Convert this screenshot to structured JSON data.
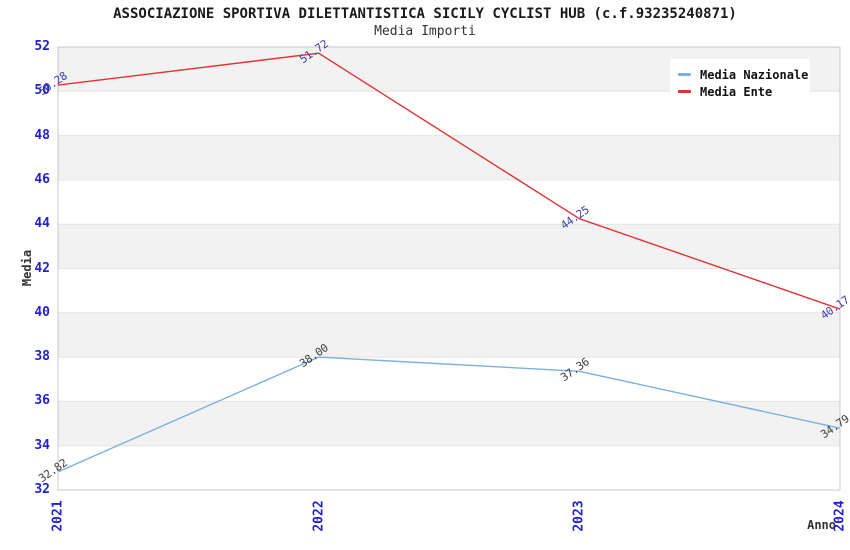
{
  "chart_data": {
    "type": "line",
    "title": "ASSOCIAZIONE SPORTIVA DILETTANTISTICA SICILY CYCLIST HUB (c.f.93235240871)",
    "subtitle": "Media Importi",
    "xlabel": "Anno",
    "ylabel": "Media",
    "x": [
      "2021",
      "2022",
      "2023",
      "2024"
    ],
    "ylim": [
      32,
      52
    ],
    "ytick_step": 2,
    "yticks": [
      32,
      34,
      36,
      38,
      40,
      42,
      44,
      46,
      48,
      50,
      52
    ],
    "grid": "horizontal-alternating-bands",
    "legend_position": "top-right",
    "series": [
      {
        "name": "Media Nazionale",
        "color": "#7cb0e2",
        "values": [
          32.82,
          38.0,
          37.36,
          34.79
        ],
        "labels": [
          "32.82",
          "38.00",
          "37.36",
          "34.79"
        ],
        "label_color": "#3c3c3c"
      },
      {
        "name": "Media Ente",
        "color": "#e23333",
        "values": [
          50.28,
          51.72,
          44.25,
          40.17
        ],
        "labels": [
          "50.28",
          "51.72",
          "44.25",
          "40.17"
        ],
        "label_color": "#3a3aad"
      }
    ],
    "colors": {
      "tick_label": "#2222cc",
      "band_gray": "#f2f2f2",
      "band_white": "#ffffff",
      "gridline": "#e3e3e3",
      "spine": "#c8c8c8",
      "title": "#1a1a1a"
    }
  }
}
